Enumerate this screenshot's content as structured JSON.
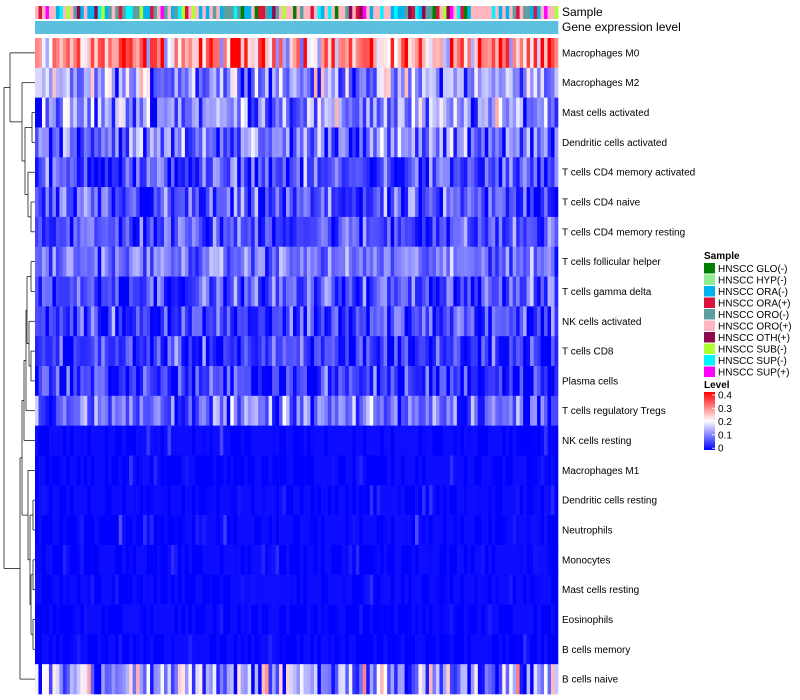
{
  "chart_data": {
    "type": "heatmap",
    "annotation_labels": [
      "Sample",
      "Gene expression level"
    ],
    "rows": [
      {
        "name": "Macrophages M0",
        "mean": 0.28,
        "spread": 0.12
      },
      {
        "name": "Macrophages M2",
        "mean": 0.12,
        "spread": 0.09
      },
      {
        "name": "Mast cells activated",
        "mean": 0.11,
        "spread": 0.09
      },
      {
        "name": "Dendritic cells activated",
        "mean": 0.09,
        "spread": 0.08
      },
      {
        "name": "T cells CD4 memory activated",
        "mean": 0.05,
        "spread": 0.07
      },
      {
        "name": "T cells CD4 naive",
        "mean": 0.05,
        "spread": 0.07
      },
      {
        "name": "T cells CD4 memory resting",
        "mean": 0.06,
        "spread": 0.06
      },
      {
        "name": "T cells follicular helper",
        "mean": 0.09,
        "spread": 0.05
      },
      {
        "name": "T cells gamma delta",
        "mean": 0.06,
        "spread": 0.06
      },
      {
        "name": "NK cells activated",
        "mean": 0.05,
        "spread": 0.07
      },
      {
        "name": "T cells CD8",
        "mean": 0.04,
        "spread": 0.06
      },
      {
        "name": "Plasma cells",
        "mean": 0.04,
        "spread": 0.06
      },
      {
        "name": "T cells regulatory  Tregs",
        "mean": 0.08,
        "spread": 0.07
      },
      {
        "name": "NK cells resting",
        "mean": 0.02,
        "spread": 0.05
      },
      {
        "name": "Macrophages M1",
        "mean": 0.01,
        "spread": 0.03
      },
      {
        "name": "Dendritic cells resting",
        "mean": 0.01,
        "spread": 0.03
      },
      {
        "name": "Neutrophils",
        "mean": 0.01,
        "spread": 0.03
      },
      {
        "name": "Monocytes",
        "mean": 0.01,
        "spread": 0.03
      },
      {
        "name": "Mast cells resting",
        "mean": 0.01,
        "spread": 0.03
      },
      {
        "name": "Eosinophils",
        "mean": 0.005,
        "spread": 0.02
      },
      {
        "name": "B cells memory",
        "mean": 0.005,
        "spread": 0.02
      },
      {
        "name": "B cells naive",
        "mean": 0.12,
        "spread": 0.12
      }
    ],
    "n_samples": 150,
    "sample_legend": {
      "title": "Sample",
      "items": [
        {
          "label": "HNSCC GLO(-)",
          "color": "#007f00"
        },
        {
          "label": "HNSCC HYP(-)",
          "color": "#90ee90"
        },
        {
          "label": "HNSCC ORA(-)",
          "color": "#00b2ee"
        },
        {
          "label": "HNSCC ORA(+)",
          "color": "#dc143c"
        },
        {
          "label": "HNSCC ORO(-)",
          "color": "#5f9ea0"
        },
        {
          "label": "HNSCC ORO(+)",
          "color": "#ffb6c1"
        },
        {
          "label": "HNSCC OTH(+)",
          "color": "#8b0a50"
        },
        {
          "label": "HNSCC SUB(-)",
          "color": "#adff2f"
        },
        {
          "label": "HNSCC SUP(-)",
          "color": "#00f5ff"
        },
        {
          "label": "HNSCC SUP(+)",
          "color": "#ff00ff"
        }
      ]
    },
    "level_legend": {
      "title": "Level",
      "ticks": [
        "0.4",
        "0.3",
        "0.2",
        "0.1",
        "0"
      ],
      "range": [
        0,
        0.4
      ],
      "colors": [
        "#0000ff",
        "#ffffff",
        "#ff0000"
      ]
    },
    "gene_expression_color": "#5bc0de"
  }
}
